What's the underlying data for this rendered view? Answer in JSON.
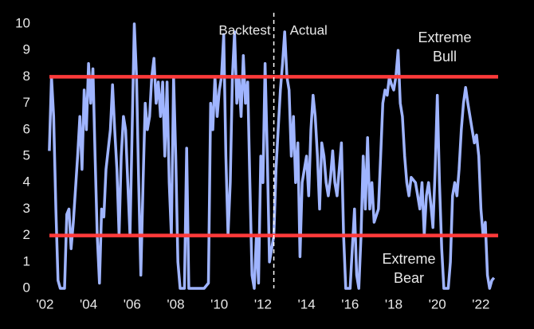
{
  "chart_data": {
    "type": "line",
    "x": [
      2002.2,
      2002.3,
      2002.4,
      2002.5,
      2002.6,
      2002.7,
      2002.9,
      2003.0,
      2003.1,
      2003.2,
      2003.3,
      2003.5,
      2003.6,
      2003.7,
      2003.8,
      2003.9,
      2004.0,
      2004.1,
      2004.2,
      2004.3,
      2004.4,
      2004.5,
      2004.6,
      2004.7,
      2004.8,
      2005.0,
      2005.1,
      2005.2,
      2005.3,
      2005.4,
      2005.5,
      2005.6,
      2005.7,
      2005.8,
      2005.9,
      2006.0,
      2006.1,
      2006.2,
      2006.3,
      2006.4,
      2006.5,
      2006.6,
      2006.7,
      2006.8,
      2006.9,
      2007.0,
      2007.1,
      2007.2,
      2007.3,
      2007.4,
      2007.5,
      2007.6,
      2007.7,
      2007.8,
      2007.9,
      2008.0,
      2008.1,
      2008.2,
      2008.4,
      2008.5,
      2008.6,
      2009.0,
      2009.3,
      2009.5,
      2009.6,
      2009.7,
      2009.8,
      2009.9,
      2010.0,
      2010.1,
      2010.2,
      2010.3,
      2010.4,
      2010.5,
      2010.6,
      2010.7,
      2010.8,
      2010.9,
      2011.0,
      2011.1,
      2011.2,
      2011.3,
      2011.4,
      2011.5,
      2011.6,
      2011.7,
      2011.8,
      2011.9,
      2012.0,
      2012.1,
      2012.2,
      2012.3,
      2012.5,
      2012.6,
      2012.7,
      2012.8,
      2012.9,
      2013.0,
      2013.1,
      2013.2,
      2013.3,
      2013.4,
      2013.5,
      2013.6,
      2013.7,
      2013.8,
      2014.0,
      2014.1,
      2014.2,
      2014.3,
      2014.4,
      2014.5,
      2014.6,
      2014.7,
      2014.8,
      2014.9,
      2015.0,
      2015.1,
      2015.2,
      2015.3,
      2015.4,
      2015.5,
      2015.6,
      2015.7,
      2015.8,
      2016.0,
      2016.1,
      2016.2,
      2016.3,
      2016.4,
      2016.5,
      2016.6,
      2016.7,
      2016.8,
      2016.9,
      2017.0,
      2017.1,
      2017.3,
      2017.4,
      2017.5,
      2017.6,
      2017.7,
      2017.8,
      2017.9,
      2018.0,
      2018.1,
      2018.2,
      2018.3,
      2018.4,
      2018.5,
      2018.6,
      2018.7,
      2018.8,
      2019.0,
      2019.1,
      2019.2,
      2019.3,
      2019.4,
      2019.5,
      2019.6,
      2019.7,
      2019.8,
      2019.9,
      2020.0,
      2020.1,
      2020.2,
      2020.3,
      2020.5,
      2020.6,
      2020.7,
      2020.8,
      2020.9,
      2021.0,
      2021.1,
      2021.2,
      2021.3,
      2021.4,
      2021.5,
      2021.6,
      2021.7,
      2021.8,
      2021.9,
      2022.0,
      2022.1,
      2022.2,
      2022.3,
      2022.4,
      2022.5,
      2022.6
    ],
    "series": [
      {
        "color": "#9fb4ff",
        "values": [
          5.2,
          8.0,
          6.5,
          3,
          0.3,
          0,
          0,
          2.8,
          3.0,
          1.5,
          2.5,
          5,
          6.5,
          4.5,
          7.5,
          6,
          8.5,
          7,
          8.3,
          5,
          2,
          0.2,
          3,
          2.7,
          4.5,
          6,
          7.7,
          6,
          4.5,
          2,
          5,
          6.5,
          6,
          4,
          2,
          6,
          10,
          8,
          4,
          0.5,
          4,
          7,
          6,
          6.5,
          8,
          8.7,
          7,
          7.8,
          6.5,
          7.8,
          5,
          7.8,
          4,
          2,
          8,
          5,
          1,
          0,
          0,
          5.3,
          0,
          0,
          0,
          0.2,
          7,
          6,
          8,
          6.5,
          7.5,
          8,
          9.6,
          5,
          2,
          4,
          8,
          9.7,
          7,
          8,
          6.5,
          8.8,
          7,
          7.8,
          4,
          0.5,
          0,
          2,
          0.2,
          5,
          4,
          8.5,
          5,
          1,
          2,
          4.5,
          6,
          7.5,
          8.5,
          9.7,
          8,
          7.5,
          5,
          6.5,
          4,
          5.5,
          1.2,
          4,
          5,
          3.5,
          6,
          7.3,
          6.5,
          5,
          3,
          5.5,
          5,
          4,
          3.5,
          4.2,
          5.2,
          4,
          3.5,
          4.5,
          5.5,
          2,
          0,
          0,
          1.5,
          3,
          0.5,
          0,
          2,
          5,
          3,
          5.7,
          3,
          4,
          2.5,
          3,
          5,
          7,
          7.5,
          7.3,
          8.0,
          7.7,
          7.5,
          8,
          9,
          7,
          6.5,
          5,
          4,
          3.5,
          4.2,
          4,
          3.5,
          3,
          4,
          2,
          3.5,
          4,
          3.2,
          2.3,
          4.5,
          7.3,
          4,
          1.5,
          0,
          0,
          1,
          3.5,
          4,
          3.5,
          4.5,
          6,
          7,
          7.6,
          7,
          6.5,
          6,
          5.5,
          5.8,
          5,
          3,
          2,
          2.5,
          0.5,
          0,
          0.3,
          0.4
        ]
      }
    ],
    "xlim": [
      2001.4,
      2022.9
    ],
    "xticks": [
      {
        "value": 2002,
        "label": "'02"
      },
      {
        "value": 2004,
        "label": "'04"
      },
      {
        "value": 2006,
        "label": "'06"
      },
      {
        "value": 2008,
        "label": "'08"
      },
      {
        "value": 2010,
        "label": "'10"
      },
      {
        "value": 2012,
        "label": "'12"
      },
      {
        "value": 2014,
        "label": "'14"
      },
      {
        "value": 2016,
        "label": "'16"
      },
      {
        "value": 2018,
        "label": "'18"
      },
      {
        "value": 2020,
        "label": "'20"
      },
      {
        "value": 2022,
        "label": "'22"
      }
    ],
    "ylim": [
      0,
      10
    ],
    "yticks": [
      0,
      1,
      2,
      3,
      4,
      5,
      6,
      7,
      8,
      9,
      10
    ],
    "reference_lines": [
      {
        "value": 8,
        "color": "#ff3a3a"
      },
      {
        "value": 2,
        "color": "#ff3a3a"
      }
    ],
    "divider": {
      "value": 2012.5,
      "left_label": "Backtest",
      "right_label": "Actual"
    },
    "bull_label": [
      "Extreme",
      "Bull"
    ],
    "bear_label": [
      "Extreme",
      "Bear"
    ]
  }
}
